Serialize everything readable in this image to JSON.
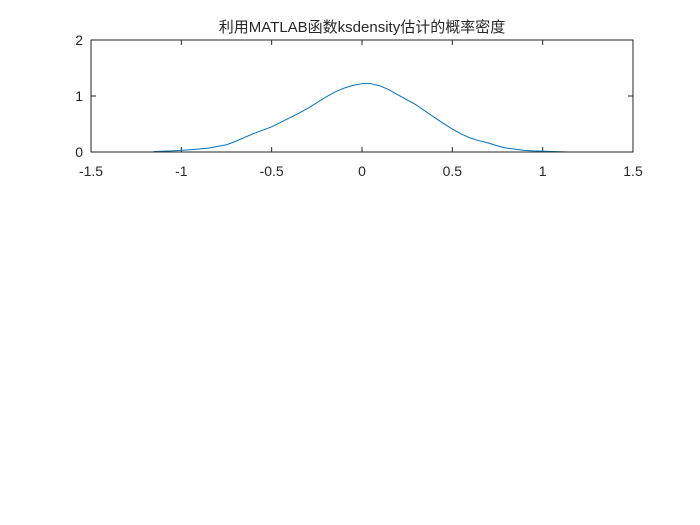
{
  "chart_data": {
    "type": "line",
    "title": "利用MATLAB函数ksdensity估计的概率密度",
    "xlabel": "",
    "ylabel": "",
    "xlim": [
      -1.5,
      1.5
    ],
    "ylim": [
      0,
      2
    ],
    "x_ticks": [
      "-1.5",
      "-1",
      "-0.5",
      "0",
      "0.5",
      "1",
      "1.5"
    ],
    "y_ticks": [
      "0",
      "1",
      "2"
    ],
    "grid": false,
    "legend": "none",
    "series": [
      {
        "color": "#0072BD",
        "x": [
          -1.15,
          -1.05,
          -0.95,
          -0.85,
          -0.75,
          -0.7,
          -0.65,
          -0.6,
          -0.55,
          -0.5,
          -0.45,
          -0.4,
          -0.35,
          -0.3,
          -0.25,
          -0.2,
          -0.15,
          -0.1,
          -0.05,
          0,
          0.05,
          0.1,
          0.15,
          0.2,
          0.25,
          0.3,
          0.35,
          0.4,
          0.45,
          0.5,
          0.55,
          0.6,
          0.65,
          0.7,
          0.75,
          0.8,
          0.85,
          0.9,
          0.95,
          1.05,
          1.15
        ],
        "y": [
          0.01,
          0.02,
          0.04,
          0.07,
          0.13,
          0.19,
          0.26,
          0.33,
          0.39,
          0.45,
          0.53,
          0.61,
          0.69,
          0.78,
          0.88,
          0.98,
          1.07,
          1.14,
          1.19,
          1.22,
          1.22,
          1.18,
          1.11,
          1.02,
          0.93,
          0.84,
          0.73,
          0.62,
          0.51,
          0.41,
          0.32,
          0.25,
          0.2,
          0.16,
          0.11,
          0.07,
          0.05,
          0.03,
          0.02,
          0.01,
          0.0
        ]
      }
    ]
  }
}
